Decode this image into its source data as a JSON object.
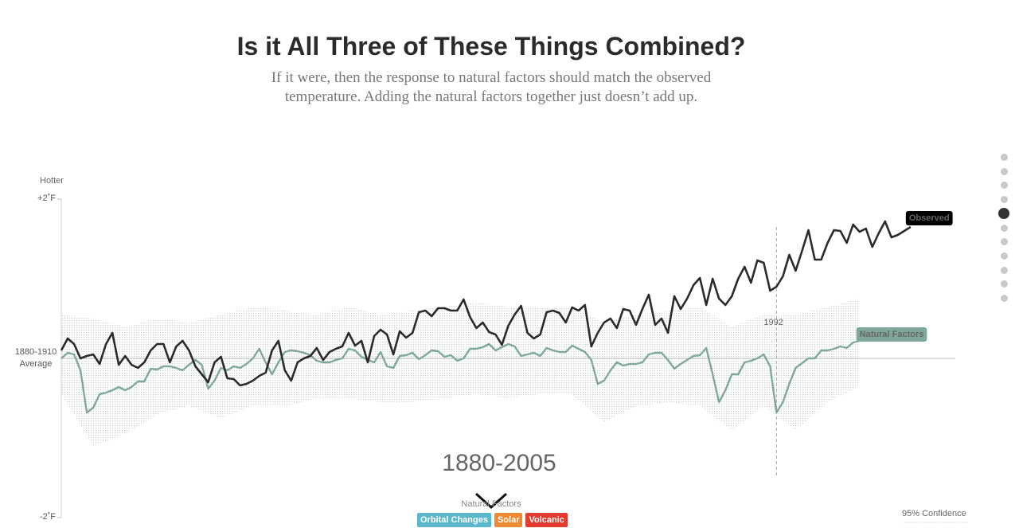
{
  "header": {
    "title": "Is it All Three of These Things Combined?",
    "subtitle": "If it were, then the response to natural factors should match the observed temperature. Adding the natural factors together just doesn’t add up."
  },
  "chart_data": {
    "type": "line",
    "y_label": "Hotter",
    "period_label": "1880-2005",
    "xlim": [
      1880,
      2020
    ],
    "ylim": [
      -2,
      2
    ],
    "yticks": [
      {
        "value": 2,
        "label": "+2˚F"
      },
      {
        "value": 0,
        "label": "1880-1910 Average"
      },
      {
        "value": -2,
        "label": "-2˚F"
      }
    ],
    "x": [
      1880,
      1881,
      1882,
      1883,
      1884,
      1885,
      1886,
      1887,
      1888,
      1889,
      1890,
      1891,
      1892,
      1893,
      1894,
      1895,
      1896,
      1897,
      1898,
      1899,
      1900,
      1901,
      1902,
      1903,
      1904,
      1905,
      1906,
      1907,
      1908,
      1909,
      1910,
      1911,
      1912,
      1913,
      1914,
      1915,
      1916,
      1917,
      1918,
      1919,
      1920,
      1921,
      1922,
      1923,
      1924,
      1925,
      1926,
      1927,
      1928,
      1929,
      1930,
      1931,
      1932,
      1933,
      1934,
      1935,
      1936,
      1937,
      1938,
      1939,
      1940,
      1941,
      1942,
      1943,
      1944,
      1945,
      1946,
      1947,
      1948,
      1949,
      1950,
      1951,
      1952,
      1953,
      1954,
      1955,
      1956,
      1957,
      1958,
      1959,
      1960,
      1961,
      1962,
      1963,
      1964,
      1965,
      1966,
      1967,
      1968,
      1969,
      1970,
      1971,
      1972,
      1973,
      1974,
      1975,
      1976,
      1977,
      1978,
      1979,
      1980,
      1981,
      1982,
      1983,
      1984,
      1985,
      1986,
      1987,
      1988,
      1989,
      1990,
      1991,
      1992,
      1993,
      1994,
      1995,
      1996,
      1997,
      1998,
      1999,
      2000,
      2001,
      2002,
      2003,
      2004,
      2005,
      2006,
      2007,
      2008,
      2009,
      2010,
      2011,
      2012,
      2013
    ],
    "series": [
      {
        "name": "Observed",
        "color": "#2b2b2e",
        "values": [
          0.1,
          0.25,
          0.18,
          0,
          0.03,
          0.05,
          -0.07,
          0.18,
          0.32,
          -0.08,
          0.03,
          -0.08,
          -0.12,
          -0.05,
          0.1,
          0.18,
          0.18,
          -0.05,
          0.15,
          0.22,
          0.1,
          -0.1,
          -0.2,
          -0.3,
          -0.05,
          0.02,
          -0.25,
          -0.26,
          -0.34,
          -0.32,
          -0.28,
          -0.22,
          -0.18,
          0.1,
          0.22,
          -0.15,
          -0.28,
          -0.05,
          0,
          0.03,
          0.13,
          -0.02,
          0.08,
          0.12,
          0.15,
          0.32,
          0.16,
          0.22,
          -0.05,
          0.28,
          0.36,
          0.3,
          0.05,
          0.34,
          0.26,
          0.32,
          0.58,
          0.6,
          0.53,
          0.63,
          0.63,
          0.6,
          0.6,
          0.74,
          0.52,
          0.38,
          0.45,
          0.33,
          0.3,
          0.17,
          0.41,
          0.55,
          0.66,
          0.32,
          0.25,
          0.3,
          0.58,
          0.6,
          0.57,
          0.45,
          0.64,
          0.6,
          0.67,
          0.15,
          0.32,
          0.45,
          0.5,
          0.38,
          0.62,
          0.6,
          0.42,
          0.62,
          0.8,
          0.42,
          0.5,
          0.32,
          0.78,
          0.62,
          0.75,
          0.92,
          1.01,
          0.67,
          1.0,
          0.75,
          0.67,
          0.78,
          1.0,
          1.15,
          0.95,
          1.23,
          1.2,
          0.85,
          0.9,
          1.03,
          1.3,
          1.1,
          1.35,
          1.61,
          1.24,
          1.24,
          1.45,
          1.61,
          1.6,
          1.45,
          1.68,
          1.59,
          1.63,
          1.4,
          1.57,
          1.72,
          1.52,
          1.55,
          1.6,
          1.65
        ]
      },
      {
        "name": "Natural Factors",
        "color": "#7fa89b",
        "values": [
          0,
          0.07,
          0.05,
          -0.15,
          -0.68,
          -0.62,
          -0.45,
          -0.43,
          -0.4,
          -0.36,
          -0.4,
          -0.36,
          -0.29,
          -0.29,
          -0.13,
          -0.14,
          -0.1,
          -0.1,
          -0.12,
          -0.15,
          -0.08,
          -0.02,
          -0.08,
          -0.38,
          -0.28,
          -0.12,
          -0.15,
          -0.1,
          -0.12,
          -0.07,
          0,
          0.12,
          -0.05,
          -0.2,
          -0.05,
          0.08,
          0.1,
          0.09,
          0.07,
          0.04,
          -0.03,
          -0.05,
          -0.05,
          -0.02,
          0,
          0.12,
          0.1,
          0.02,
          -0.02,
          -0.05,
          0.08,
          -0.1,
          -0.12,
          0.03,
          0.04,
          0.07,
          -0.01,
          0.04,
          0.1,
          0.09,
          0.02,
          0.04,
          -0.03,
          0,
          0.12,
          0.12,
          0.14,
          0.18,
          0.1,
          0.14,
          0.18,
          0.15,
          0.03,
          0.05,
          0.07,
          0.03,
          0.13,
          0.1,
          0.08,
          0.08,
          0.16,
          0.12,
          0.08,
          -0.02,
          -0.32,
          -0.28,
          -0.15,
          -0.05,
          -0.09,
          -0.07,
          -0.07,
          -0.05,
          0.05,
          0.07,
          0.07,
          -0.02,
          -0.13,
          -0.07,
          -0.02,
          0.03,
          0.04,
          0.13,
          -0.2,
          -0.55,
          -0.4,
          -0.2,
          -0.2,
          -0.05,
          -0.03,
          0,
          0.05,
          -0.1,
          -0.68,
          -0.55,
          -0.32,
          -0.12,
          -0.06,
          0,
          0,
          0.1,
          0.1,
          0.12,
          0.15,
          0.13,
          0.2,
          0.22,
          null,
          null,
          null,
          null,
          null,
          null,
          null,
          null
        ]
      }
    ],
    "band": {
      "name": "95% Confidence",
      "x": [
        1880,
        1885,
        1890,
        1895,
        1900,
        1905,
        1910,
        1915,
        1920,
        1925,
        1930,
        1935,
        1940,
        1945,
        1950,
        1955,
        1960,
        1965,
        1970,
        1975,
        1980,
        1985,
        1990,
        1995,
        2000,
        2005
      ],
      "upper": [
        0.55,
        0.5,
        0.4,
        0.5,
        0.45,
        0.55,
        0.65,
        0.6,
        0.55,
        0.65,
        0.55,
        0.6,
        0.65,
        0.7,
        0.65,
        0.65,
        0.65,
        0.45,
        0.55,
        0.6,
        0.65,
        0.4,
        0.55,
        0.55,
        0.65,
        0.75
      ],
      "lower": [
        -0.45,
        -1.1,
        -0.95,
        -0.7,
        -0.6,
        -0.75,
        -0.6,
        -0.6,
        -0.5,
        -0.5,
        -0.55,
        -0.55,
        -0.5,
        -0.45,
        -0.5,
        -0.45,
        -0.45,
        -0.8,
        -0.6,
        -0.55,
        -0.6,
        -0.9,
        -0.6,
        -0.9,
        -0.55,
        -0.35
      ]
    },
    "annotations": [
      {
        "x": 1992,
        "label": "1992"
      }
    ],
    "controls": {
      "label": "Natural Factors",
      "buttons": [
        {
          "label": "Orbital Changes",
          "color": "#5bb8cc"
        },
        {
          "label": "Solar",
          "color": "#f08a32"
        },
        {
          "label": "Volcanic",
          "color": "#e33b2e"
        }
      ]
    }
  }
}
